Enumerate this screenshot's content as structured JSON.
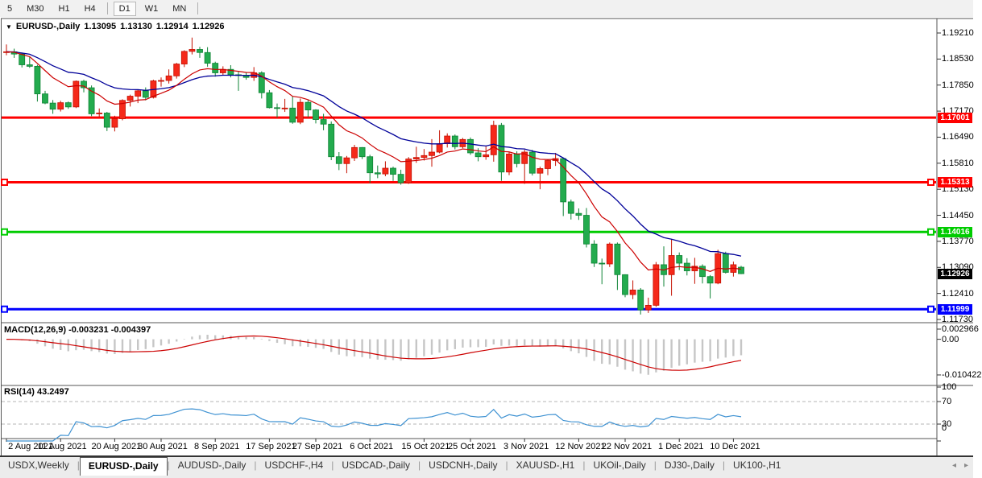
{
  "toolbar": {
    "timeframes": [
      {
        "label": "5",
        "active": false,
        "sep_after": false
      },
      {
        "label": "M30",
        "active": false,
        "sep_after": false
      },
      {
        "label": "H1",
        "active": false,
        "sep_after": false
      },
      {
        "label": "H4",
        "active": false,
        "sep_after": true
      },
      {
        "label": "D1",
        "active": true,
        "sep_after": false
      },
      {
        "label": "W1",
        "active": false,
        "sep_after": false
      },
      {
        "label": "MN",
        "active": false,
        "sep_after": true
      }
    ]
  },
  "chart": {
    "title": {
      "symbol": "EURUSD-,Daily",
      "open": "1.13095",
      "high": "1.13130",
      "low": "1.12914",
      "close": "1.12926"
    },
    "price_axis": {
      "ticks": [
        "1.19210",
        "1.18530",
        "1.17850",
        "1.17170",
        "1.16490",
        "1.15810",
        "1.15130",
        "1.14450",
        "1.13770",
        "1.13090",
        "1.12410",
        "1.11730"
      ],
      "top_price": 1.1921,
      "bottom_price": 1.1173
    },
    "current_price": {
      "value": "1.12926",
      "price": 1.12926,
      "bg": "#000000"
    },
    "hlines": [
      {
        "label": "1.17001",
        "price": 1.17001,
        "color": "#ff0000",
        "handles": false
      },
      {
        "label": "1.15313",
        "price": 1.15313,
        "color": "#ff0000",
        "handles": true
      },
      {
        "label": "1.14016",
        "price": 1.14016,
        "color": "#00cc00",
        "handles": true
      },
      {
        "label": "1.11999",
        "price": 1.11999,
        "color": "#0000ff",
        "handles": true
      }
    ],
    "ma_fast": {
      "period": 10,
      "color": "#cc0000"
    },
    "ma_slow": {
      "period": 22,
      "color": "#000099"
    },
    "bull_color": "#f5291a",
    "bull_stroke": "#c41000",
    "bear_color": "#23ab4e",
    "bear_stroke": "#0f8336",
    "date_axis": [
      {
        "label": "2 Aug 2021",
        "idx": 0
      },
      {
        "label": "11 Aug 2021",
        "idx": 7
      },
      {
        "label": "20 Aug 2021",
        "idx": 14
      },
      {
        "label": "30 Aug 2021",
        "idx": 20
      },
      {
        "label": "8 Sep 2021",
        "idx": 27
      },
      {
        "label": "17 Sep 2021",
        "idx": 34
      },
      {
        "label": "27 Sep 2021",
        "idx": 40
      },
      {
        "label": "6 Oct 2021",
        "idx": 47
      },
      {
        "label": "15 Oct 2021",
        "idx": 54
      },
      {
        "label": "25 Oct 2021",
        "idx": 60
      },
      {
        "label": "3 Nov 2021",
        "idx": 67
      },
      {
        "label": "12 Nov 2021",
        "idx": 74
      },
      {
        "label": "22 Nov 2021",
        "idx": 80
      },
      {
        "label": "1 Dec 2021",
        "idx": 87
      },
      {
        "label": "10 Dec 2021",
        "idx": 94
      }
    ],
    "candles": [
      [
        1.187,
        1.1891,
        1.1863,
        1.1872
      ],
      [
        1.1872,
        1.188,
        1.1856,
        1.1866
      ],
      [
        1.1866,
        1.187,
        1.1831,
        1.1838
      ],
      [
        1.1838,
        1.1858,
        1.183,
        1.1834
      ],
      [
        1.1834,
        1.1838,
        1.1742,
        1.1762
      ],
      [
        1.1762,
        1.177,
        1.1735,
        1.1738
      ],
      [
        1.1738,
        1.1746,
        1.171,
        1.1722
      ],
      [
        1.1722,
        1.1744,
        1.1716,
        1.1739
      ],
      [
        1.1739,
        1.1742,
        1.1723,
        1.1728
      ],
      [
        1.1728,
        1.1797,
        1.1725,
        1.1795
      ],
      [
        1.1795,
        1.1799,
        1.1766,
        1.1778
      ],
      [
        1.1778,
        1.1784,
        1.1704,
        1.171
      ],
      [
        1.171,
        1.1724,
        1.1702,
        1.1712
      ],
      [
        1.1712,
        1.1715,
        1.1665,
        1.1675
      ],
      [
        1.1675,
        1.1705,
        1.1664,
        1.1697
      ],
      [
        1.1697,
        1.1748,
        1.1693,
        1.1745
      ],
      [
        1.1745,
        1.176,
        1.1729,
        1.1756
      ],
      [
        1.1756,
        1.1774,
        1.1738,
        1.177
      ],
      [
        1.177,
        1.1779,
        1.1745,
        1.1753
      ],
      [
        1.1753,
        1.1799,
        1.175,
        1.1796
      ],
      [
        1.1796,
        1.1805,
        1.1781,
        1.1797
      ],
      [
        1.1797,
        1.1826,
        1.1789,
        1.1809
      ],
      [
        1.1809,
        1.1843,
        1.1802,
        1.184
      ],
      [
        1.184,
        1.1876,
        1.1832,
        1.1873
      ],
      [
        1.1873,
        1.1909,
        1.1865,
        1.1878
      ],
      [
        1.1878,
        1.1885,
        1.1856,
        1.187
      ],
      [
        1.187,
        1.1884,
        1.1833,
        1.1842
      ],
      [
        1.1842,
        1.1846,
        1.1807,
        1.1817
      ],
      [
        1.1817,
        1.1834,
        1.181,
        1.1826
      ],
      [
        1.1826,
        1.1837,
        1.1805,
        1.1812
      ],
      [
        1.1812,
        1.182,
        1.177,
        1.181
      ],
      [
        1.181,
        1.1818,
        1.1799,
        1.1805
      ],
      [
        1.1805,
        1.1832,
        1.1796,
        1.1817
      ],
      [
        1.1817,
        1.1821,
        1.175,
        1.1765
      ],
      [
        1.1765,
        1.1772,
        1.1724,
        1.1726
      ],
      [
        1.1726,
        1.1737,
        1.17,
        1.1725
      ],
      [
        1.1725,
        1.1749,
        1.1715,
        1.1725
      ],
      [
        1.1725,
        1.1756,
        1.1684,
        1.1688
      ],
      [
        1.1688,
        1.175,
        1.1683,
        1.174
      ],
      [
        1.174,
        1.1747,
        1.1701,
        1.172
      ],
      [
        1.172,
        1.1722,
        1.1685,
        1.1695
      ],
      [
        1.1695,
        1.171,
        1.1667,
        1.1683
      ],
      [
        1.1683,
        1.169,
        1.1589,
        1.1598
      ],
      [
        1.1598,
        1.161,
        1.1563,
        1.158
      ],
      [
        1.158,
        1.16,
        1.1555,
        1.1595
      ],
      [
        1.1595,
        1.1629,
        1.1587,
        1.1622
      ],
      [
        1.1622,
        1.1623,
        1.1592,
        1.1598
      ],
      [
        1.1598,
        1.1603,
        1.1529,
        1.1556
      ],
      [
        1.1556,
        1.1575,
        1.1542,
        1.1553
      ],
      [
        1.1553,
        1.1586,
        1.1547,
        1.1568
      ],
      [
        1.1568,
        1.1572,
        1.1535,
        1.1552
      ],
      [
        1.1552,
        1.1564,
        1.1525,
        1.153
      ],
      [
        1.153,
        1.1597,
        1.1527,
        1.1592
      ],
      [
        1.1592,
        1.1624,
        1.1582,
        1.1596
      ],
      [
        1.1596,
        1.1618,
        1.1588,
        1.1601
      ],
      [
        1.1601,
        1.1644,
        1.1572,
        1.161
      ],
      [
        1.161,
        1.1667,
        1.1607,
        1.1632
      ],
      [
        1.1632,
        1.1659,
        1.1622,
        1.1652
      ],
      [
        1.1652,
        1.1656,
        1.1617,
        1.1624
      ],
      [
        1.1624,
        1.1647,
        1.162,
        1.1643
      ],
      [
        1.1643,
        1.1648,
        1.1603,
        1.1608
      ],
      [
        1.1608,
        1.162,
        1.1586,
        1.1598
      ],
      [
        1.1598,
        1.1626,
        1.159,
        1.1603
      ],
      [
        1.1603,
        1.1692,
        1.1585,
        1.168
      ],
      [
        1.168,
        1.1686,
        1.1535,
        1.1558
      ],
      [
        1.1558,
        1.161,
        1.155,
        1.1605
      ],
      [
        1.1605,
        1.1612,
        1.157,
        1.158
      ],
      [
        1.158,
        1.1616,
        1.1527,
        1.161
      ],
      [
        1.161,
        1.1616,
        1.1549,
        1.1555
      ],
      [
        1.1555,
        1.1572,
        1.1513,
        1.1567
      ],
      [
        1.1567,
        1.1591,
        1.155,
        1.1588
      ],
      [
        1.1588,
        1.1608,
        1.1574,
        1.1593
      ],
      [
        1.1593,
        1.1595,
        1.1443,
        1.148
      ],
      [
        1.148,
        1.1486,
        1.1434,
        1.145
      ],
      [
        1.145,
        1.1463,
        1.1433,
        1.1445
      ],
      [
        1.1445,
        1.1464,
        1.1361,
        1.137
      ],
      [
        1.137,
        1.138,
        1.131,
        1.132
      ],
      [
        1.132,
        1.1332,
        1.1265,
        1.1318
      ],
      [
        1.1318,
        1.1374,
        1.131,
        1.137
      ],
      [
        1.137,
        1.1374,
        1.125,
        1.129
      ],
      [
        1.129,
        1.1291,
        1.1231,
        1.1238
      ],
      [
        1.1238,
        1.1275,
        1.1226,
        1.125
      ],
      [
        1.125,
        1.1255,
        1.1186,
        1.1198
      ],
      [
        1.1198,
        1.123,
        1.119,
        1.121
      ],
      [
        1.121,
        1.1323,
        1.1206,
        1.1316
      ],
      [
        1.1316,
        1.1364,
        1.1259,
        1.129
      ],
      [
        1.129,
        1.1383,
        1.1235,
        1.134
      ],
      [
        1.134,
        1.1348,
        1.1302,
        1.132
      ],
      [
        1.132,
        1.1333,
        1.1288,
        1.13
      ],
      [
        1.13,
        1.1334,
        1.1266,
        1.1312
      ],
      [
        1.1312,
        1.1317,
        1.1267,
        1.1285
      ],
      [
        1.1285,
        1.1289,
        1.1228,
        1.1268
      ],
      [
        1.1268,
        1.1355,
        1.1265,
        1.1345
      ],
      [
        1.1345,
        1.135,
        1.1293,
        1.1296
      ],
      [
        1.1296,
        1.1324,
        1.1285,
        1.1316
      ],
      [
        1.13095,
        1.1313,
        1.12914,
        1.12926
      ]
    ]
  },
  "macd": {
    "label": "MACD(12,26,9)",
    "values": "-0.003231 -0.004397",
    "fast": 12,
    "slow": 26,
    "signal": 9,
    "bar_color": "#c6c6c6",
    "line_color": "#cc0000",
    "ticks": [
      {
        "label": "0.002966",
        "v": 0.002966
      },
      {
        "label": "0.00",
        "v": 0
      },
      {
        "label": "-0.010422",
        "v": -0.010422
      }
    ]
  },
  "rsi": {
    "label": "RSI(14)",
    "value": "43.2497",
    "period": 14,
    "color": "#3f92d2",
    "levels": [
      {
        "label": "100",
        "v": 100,
        "dashed": false
      },
      {
        "label": "70",
        "v": 70,
        "dashed": true
      },
      {
        "label": "30",
        "v": 30,
        "dashed": true
      },
      {
        "label": "0",
        "v": 0,
        "dashed": false
      }
    ]
  },
  "tabs": {
    "items": [
      {
        "label": "USDX,Weekly",
        "active": false
      },
      {
        "label": "EURUSD-,Daily",
        "active": true
      },
      {
        "label": "AUDUSD-,Daily",
        "active": false
      },
      {
        "label": "USDCHF-,H4",
        "active": false
      },
      {
        "label": "USDCAD-,Daily",
        "active": false
      },
      {
        "label": "USDCNH-,Daily",
        "active": false
      },
      {
        "label": "XAUUSD-,H1",
        "active": false
      },
      {
        "label": "UKOil-,Daily",
        "active": false
      },
      {
        "label": "DJ30-,Daily",
        "active": false
      },
      {
        "label": "UK100-,H1",
        "active": false
      }
    ],
    "nav_prev": "◂",
    "nav_next": "▸"
  }
}
